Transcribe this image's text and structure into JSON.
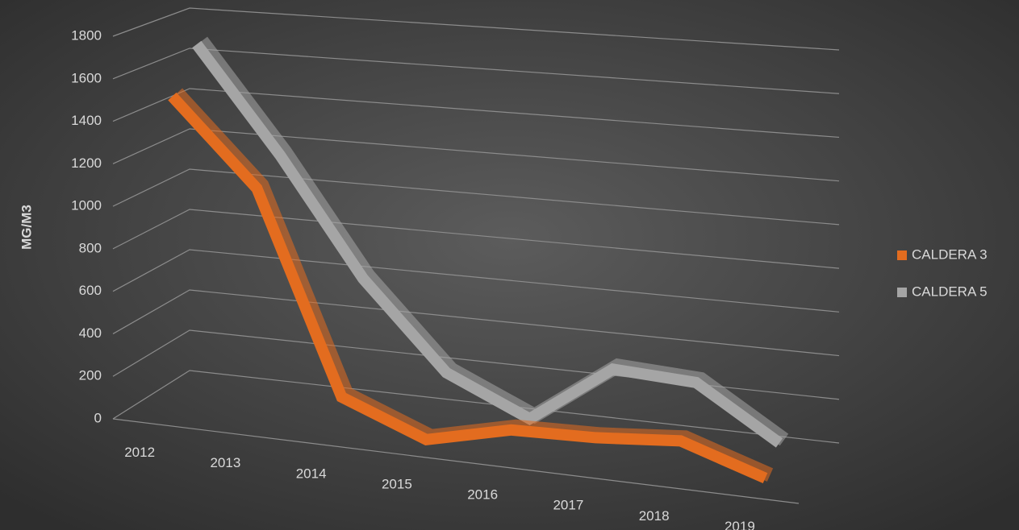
{
  "chart_data": {
    "type": "line3d",
    "y_label": "MG/M3",
    "categories": [
      "2012",
      "2013",
      "2014",
      "2015",
      "2016",
      "2017",
      "2018",
      "2019"
    ],
    "series": [
      {
        "name": "CALDERA 3",
        "color": "#e36c1f",
        "values": [
          1500,
          1100,
          170,
          20,
          110,
          120,
          150,
          30
        ]
      },
      {
        "name": "CALDERA 5",
        "color": "#a5a5a5",
        "values": [
          1700,
          1200,
          650,
          250,
          80,
          350,
          330,
          100
        ]
      }
    ],
    "ylim": [
      0,
      1800
    ],
    "yticks": [
      0,
      200,
      400,
      600,
      800,
      1000,
      1200,
      1400,
      1600,
      1800
    ],
    "grid": true,
    "legend": "right"
  }
}
